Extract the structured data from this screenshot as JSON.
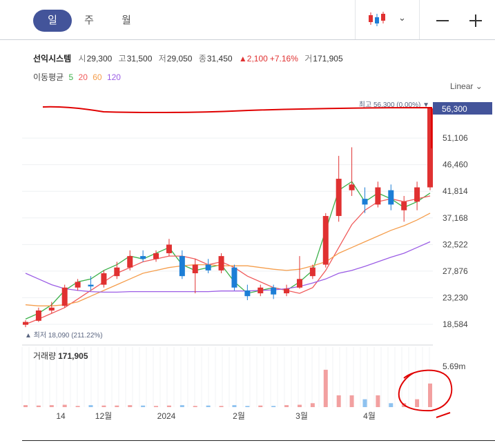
{
  "periods": {
    "day": "일",
    "week": "주",
    "month": "월"
  },
  "chart_type_icon": "candlestick-chart-icon",
  "controls": {
    "chevron": "⌄",
    "minus": "—",
    "plus": "+"
  },
  "stock": {
    "name": "선익시스템",
    "open_label": "시",
    "open": "29,300",
    "high_label": "고",
    "high": "31,500",
    "low_label": "저",
    "low": "29,050",
    "close_label": "종",
    "close": "31,450",
    "change": "▲2,100",
    "change_pct": "+7.16%",
    "volume_label": "거",
    "volume": "171,905"
  },
  "moving_avg": {
    "label": "이동평균",
    "periods": [
      {
        "label": "5",
        "color": "#3cb14a"
      },
      {
        "label": "20",
        "color": "#f05a5a"
      },
      {
        "label": "60",
        "color": "#f59d4b"
      },
      {
        "label": "120",
        "color": "#9b5de5"
      }
    ]
  },
  "scale": "Linear",
  "colors": {
    "up": "#e03131",
    "down": "#1c7ed6",
    "accent": "#43549a",
    "annotation": "#e00000"
  },
  "chart_data": {
    "type": "candlestick",
    "ylim": [
      18584,
      56300
    ],
    "y_ticks": [
      "18,584",
      "23,230",
      "27,876",
      "32,522",
      "37,168",
      "41,814",
      "46,460",
      "51,106"
    ],
    "current_price_tag": "56,300",
    "max_label": "최고 56,300 (0.00%) ▼",
    "min_label": "▲ 최저 18,090 (211.22%)",
    "x_ticks": [
      "14",
      "12월",
      "2024",
      "2월",
      "3월",
      "4월"
    ],
    "volume_title": "거래량",
    "volume_value": "171,905",
    "volume_max_label": "5.69m",
    "series_ma": [
      {
        "name": "5",
        "color": "#3cb14a",
        "values": [
          19500,
          20500,
          22000,
          24500,
          26000,
          26500,
          28000,
          29000,
          30500,
          30000,
          31000,
          32000,
          29000,
          28000,
          28500,
          29000,
          26000,
          24000,
          24500,
          25000,
          24500,
          26000,
          28000,
          35000,
          42000,
          43500,
          40000,
          41500,
          40500,
          39000,
          40000,
          41500
        ]
      },
      {
        "name": "20",
        "color": "#f05a5a",
        "values": [
          18600,
          19500,
          20500,
          21500,
          23000,
          24500,
          26000,
          27500,
          28500,
          29500,
          30000,
          30500,
          30500,
          30000,
          29000,
          29500,
          28500,
          27000,
          26000,
          25000,
          24500,
          24000,
          25000,
          28000,
          32000,
          36000,
          38500,
          40000,
          40500,
          40000,
          40500,
          41000
        ]
      },
      {
        "name": "60",
        "color": "#f59d4b",
        "values": [
          22000,
          21800,
          21800,
          22000,
          22500,
          23500,
          24500,
          25500,
          26500,
          27500,
          28000,
          28500,
          28800,
          29000,
          29000,
          28800,
          28800,
          28800,
          28500,
          28200,
          28000,
          28200,
          28800,
          29500,
          31000,
          32000,
          33000,
          34000,
          35000,
          35800,
          36800,
          38000
        ]
      },
      {
        "name": "120",
        "color": "#9b5de5",
        "values": [
          27500,
          26500,
          25500,
          24800,
          24500,
          24300,
          24200,
          24200,
          24300,
          24300,
          24300,
          24300,
          24300,
          24300,
          24300,
          24400,
          24400,
          24400,
          24500,
          24600,
          24800,
          25200,
          25800,
          26500,
          27500,
          28000,
          28700,
          29500,
          30300,
          31000,
          32000,
          33000
        ]
      }
    ],
    "candles": [
      {
        "o": 18500,
        "h": 19300,
        "l": 18090,
        "c": 19000
      },
      {
        "o": 19200,
        "h": 21500,
        "l": 19000,
        "c": 21000
      },
      {
        "o": 21000,
        "h": 22500,
        "l": 20500,
        "c": 21500
      },
      {
        "o": 21800,
        "h": 25500,
        "l": 21500,
        "c": 25000
      },
      {
        "o": 25000,
        "h": 26500,
        "l": 24500,
        "c": 26000
      },
      {
        "o": 25500,
        "h": 27000,
        "l": 24500,
        "c": 25200
      },
      {
        "o": 25500,
        "h": 28000,
        "l": 25000,
        "c": 27500
      },
      {
        "o": 27000,
        "h": 29500,
        "l": 26500,
        "c": 28500
      },
      {
        "o": 28500,
        "h": 31500,
        "l": 28000,
        "c": 30500
      },
      {
        "o": 30500,
        "h": 31500,
        "l": 29500,
        "c": 30000
      },
      {
        "o": 30000,
        "h": 31500,
        "l": 29500,
        "c": 31000
      },
      {
        "o": 31000,
        "h": 33500,
        "l": 30500,
        "c": 32500
      },
      {
        "o": 30500,
        "h": 31500,
        "l": 26500,
        "c": 27000
      },
      {
        "o": 27500,
        "h": 30000,
        "l": 24000,
        "c": 29000
      },
      {
        "o": 29000,
        "h": 30000,
        "l": 27500,
        "c": 28000
      },
      {
        "o": 28000,
        "h": 31000,
        "l": 27500,
        "c": 30500
      },
      {
        "o": 28500,
        "h": 29000,
        "l": 24500,
        "c": 25000
      },
      {
        "o": 24500,
        "h": 25500,
        "l": 22800,
        "c": 23500
      },
      {
        "o": 24000,
        "h": 25500,
        "l": 23500,
        "c": 25000
      },
      {
        "o": 25000,
        "h": 25500,
        "l": 23000,
        "c": 23800
      },
      {
        "o": 24000,
        "h": 25500,
        "l": 23500,
        "c": 24800
      },
      {
        "o": 25000,
        "h": 30500,
        "l": 24800,
        "c": 26500
      },
      {
        "o": 27000,
        "h": 29000,
        "l": 26500,
        "c": 28500
      },
      {
        "o": 29000,
        "h": 38000,
        "l": 28500,
        "c": 37500
      },
      {
        "o": 37500,
        "h": 48000,
        "l": 36500,
        "c": 44000
      },
      {
        "o": 42000,
        "h": 49500,
        "l": 41000,
        "c": 43000
      },
      {
        "o": 40500,
        "h": 42500,
        "l": 38000,
        "c": 39500
      },
      {
        "o": 39500,
        "h": 43500,
        "l": 39000,
        "c": 42500
      },
      {
        "o": 42000,
        "h": 43000,
        "l": 38500,
        "c": 39500
      },
      {
        "o": 38500,
        "h": 41000,
        "l": 36500,
        "c": 40000
      },
      {
        "o": 40000,
        "h": 43500,
        "l": 38500,
        "c": 42500
      },
      {
        "o": 42500,
        "h": 56300,
        "l": 42000,
        "c": 56300
      }
    ],
    "volumes": [
      0.05,
      0.04,
      0.05,
      0.06,
      0.03,
      0.05,
      0.04,
      0.04,
      0.05,
      0.04,
      0.03,
      0.04,
      0.05,
      0.03,
      0.04,
      0.03,
      0.05,
      0.03,
      0.04,
      0.03,
      0.05,
      0.06,
      0.1,
      0.95,
      0.3,
      0.3,
      0.2,
      0.3,
      0.1,
      0.1,
      0.2,
      0.6
    ]
  }
}
